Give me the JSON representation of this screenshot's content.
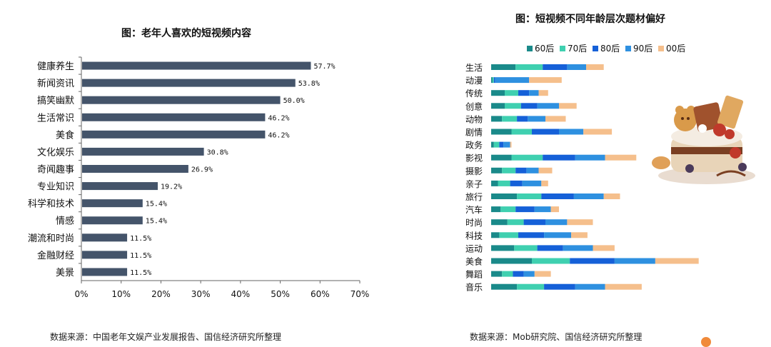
{
  "left_chart": {
    "title": "图：老年人喜欢的短视频内容",
    "source": "数据来源：中国老年文娱产业发展报告、国信经济研究所整理"
  },
  "right_chart": {
    "title": "图：短视频不同年龄层次题材偏好",
    "source": "数据来源：Mob研究院、国信经济研究所整理"
  },
  "colors": {
    "left_bar": "#44546a",
    "series": [
      "#1a8a8a",
      "#3fd0b0",
      "#1560d8",
      "#2e90e0",
      "#f5bf8c"
    ]
  },
  "decorative_icon": "cake-dessert-illustration",
  "chart_data": [
    {
      "type": "bar",
      "orientation": "horizontal",
      "title": "图：老年人喜欢的短视频内容",
      "categories": [
        "健康养生",
        "新闻资讯",
        "搞笑幽默",
        "生活常识",
        "美食",
        "文化娱乐",
        "奇闻趣事",
        "专业知识",
        "科学和技术",
        "情感",
        "潮流和时尚",
        "金融财经",
        "美景"
      ],
      "values": [
        57.7,
        53.8,
        50.0,
        46.2,
        46.2,
        30.8,
        26.9,
        19.2,
        15.4,
        15.4,
        11.5,
        11.5,
        11.5
      ],
      "value_labels": [
        "57.7%",
        "53.8%",
        "50.0%",
        "46.2%",
        "46.2%",
        "30.8%",
        "26.9%",
        "19.2%",
        "15.4%",
        "15.4%",
        "11.5%",
        "11.5%",
        "11.5%"
      ],
      "xlim": [
        0,
        70
      ],
      "xticks": [
        "0%",
        "10%",
        "20%",
        "30%",
        "40%",
        "50%",
        "60%",
        "70%"
      ],
      "xlabel": "",
      "ylabel": ""
    },
    {
      "type": "bar",
      "orientation": "horizontal",
      "stacked": true,
      "title": "图：短视频不同年龄层次题材偏好",
      "categories": [
        "生活",
        "动漫",
        "传统",
        "创意",
        "动物",
        "剧情",
        "政务",
        "影视",
        "摄影",
        "亲子",
        "旅行",
        "汽车",
        "时尚",
        "科技",
        "运动",
        "美食",
        "舞蹈",
        "音乐"
      ],
      "legend": [
        "60后",
        "70后",
        "80后",
        "90后",
        "00后"
      ],
      "legend_position": "top",
      "series": [
        {
          "name": "60后",
          "values": [
            18,
            1,
            10,
            10,
            8,
            15,
            2,
            15,
            8,
            5,
            19,
            7,
            12,
            6,
            17,
            30,
            8,
            19
          ]
        },
        {
          "name": "70后",
          "values": [
            20,
            1,
            10,
            12,
            11,
            15,
            4,
            23,
            10,
            9,
            18,
            11,
            12,
            14,
            17,
            28,
            8,
            20
          ]
        },
        {
          "name": "80后",
          "values": [
            18,
            1,
            8,
            12,
            8,
            20,
            3,
            24,
            8,
            9,
            24,
            14,
            16,
            19,
            19,
            33,
            8,
            23
          ]
        },
        {
          "name": "90后",
          "values": [
            14,
            25,
            7,
            16,
            13,
            18,
            5,
            22,
            9,
            14,
            22,
            12,
            16,
            20,
            22,
            30,
            8,
            22
          ]
        },
        {
          "name": "00后",
          "values": [
            13,
            24,
            7,
            13,
            15,
            21,
            1,
            23,
            10,
            5,
            12,
            6,
            19,
            12,
            16,
            32,
            12,
            27
          ]
        }
      ],
      "xlabel": "",
      "ylabel": "",
      "axis_visible": false
    }
  ]
}
